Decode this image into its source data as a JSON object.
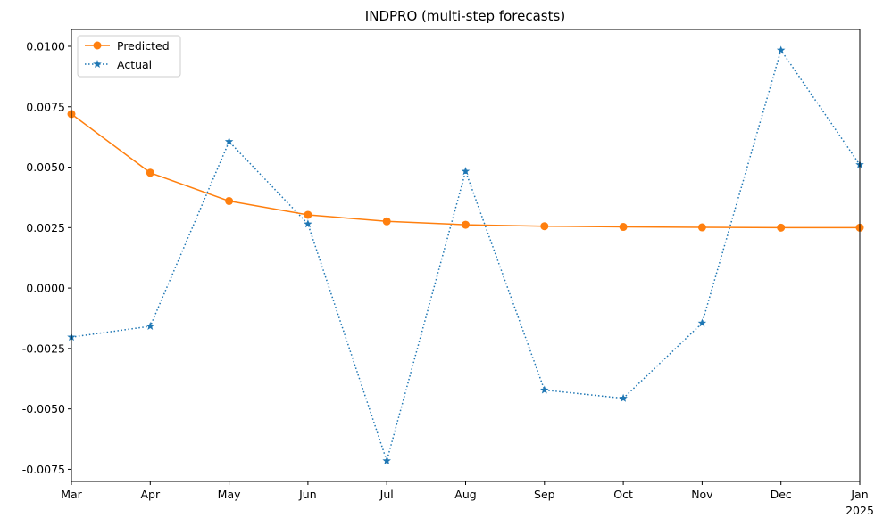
{
  "chart_data": {
    "type": "line",
    "title": "INDPRO (multi-step forecasts)",
    "xlabel": "",
    "ylabel": "",
    "categories": [
      "Mar",
      "Apr",
      "May",
      "Jun",
      "Jul",
      "Aug",
      "Sep",
      "Oct",
      "Nov",
      "Dec",
      "Jan"
    ],
    "year_label": "2025",
    "ylim": [
      -0.008,
      0.0107
    ],
    "yticks": [
      "-0.0075",
      "-0.0050",
      "-0.0025",
      "0.0000",
      "0.0025",
      "0.0050",
      "0.0075",
      "0.0100"
    ],
    "ytick_values": [
      -0.0075,
      -0.005,
      -0.0025,
      0.0,
      0.0025,
      0.005,
      0.0075,
      0.01
    ],
    "grid": false,
    "legend_position": "top-left",
    "series": [
      {
        "name": "Predicted",
        "color": "#ff7f0e",
        "line_style": "solid",
        "marker": "circle",
        "values": [
          0.0072,
          0.00477,
          0.0036,
          0.00303,
          0.00276,
          0.00262,
          0.00256,
          0.00253,
          0.00251,
          0.0025,
          0.0025
        ]
      },
      {
        "name": "Actual",
        "color": "#1f77b4",
        "line_style": "dotted",
        "marker": "star",
        "values": [
          -0.00203,
          -0.00158,
          0.00606,
          0.00265,
          -0.00715,
          0.00483,
          -0.00422,
          -0.00456,
          -0.00145,
          0.00984,
          0.0051
        ]
      }
    ]
  }
}
